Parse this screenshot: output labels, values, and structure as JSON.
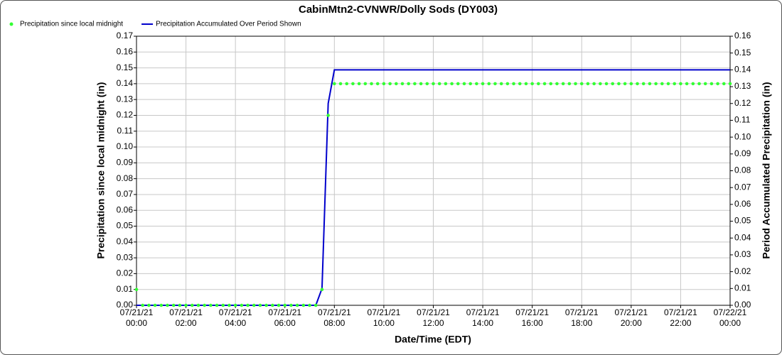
{
  "chart_data": {
    "type": "line",
    "title": "CabinMtn2-CVNWR/Dolly Sods (DY003)",
    "x_label": "Date/Time (EDT)",
    "y_label": "Precipitation since local midnight (in)",
    "y2_label": "Period Accumulated Precipitation (in)",
    "grid": true,
    "legend": "top-left",
    "x": [
      "07/21/21 00:00",
      "07/21/21 00:15",
      "07/21/21 00:30",
      "07/21/21 00:45",
      "07/21/21 01:00",
      "07/21/21 01:15",
      "07/21/21 01:30",
      "07/21/21 01:45",
      "07/21/21 02:00",
      "07/21/21 02:15",
      "07/21/21 02:30",
      "07/21/21 02:45",
      "07/21/21 03:00",
      "07/21/21 03:15",
      "07/21/21 03:30",
      "07/21/21 03:45",
      "07/21/21 04:00",
      "07/21/21 04:15",
      "07/21/21 04:30",
      "07/21/21 04:45",
      "07/21/21 05:00",
      "07/21/21 05:15",
      "07/21/21 05:30",
      "07/21/21 05:45",
      "07/21/21 06:00",
      "07/21/21 06:15",
      "07/21/21 06:30",
      "07/21/21 06:45",
      "07/21/21 07:00",
      "07/21/21 07:15",
      "07/21/21 07:30",
      "07/21/21 07:45",
      "07/21/21 08:00",
      "07/21/21 08:15",
      "07/21/21 08:30",
      "07/21/21 08:45",
      "07/21/21 09:00",
      "07/21/21 09:15",
      "07/21/21 09:30",
      "07/21/21 09:45",
      "07/21/21 10:00",
      "07/21/21 10:15",
      "07/21/21 10:30",
      "07/21/21 10:45",
      "07/21/21 11:00",
      "07/21/21 11:15",
      "07/21/21 11:30",
      "07/21/21 11:45",
      "07/21/21 12:00",
      "07/21/21 12:15",
      "07/21/21 12:30",
      "07/21/21 12:45",
      "07/21/21 13:00",
      "07/21/21 13:15",
      "07/21/21 13:30",
      "07/21/21 13:45",
      "07/21/21 14:00",
      "07/21/21 14:15",
      "07/21/21 14:30",
      "07/21/21 14:45",
      "07/21/21 15:00",
      "07/21/21 15:15",
      "07/21/21 15:30",
      "07/21/21 15:45",
      "07/21/21 16:00",
      "07/21/21 16:15",
      "07/21/21 16:30",
      "07/21/21 16:45",
      "07/21/21 17:00",
      "07/21/21 17:15",
      "07/21/21 17:30",
      "07/21/21 17:45",
      "07/21/21 18:00",
      "07/21/21 18:15",
      "07/21/21 18:30",
      "07/21/21 18:45",
      "07/21/21 19:00",
      "07/21/21 19:15",
      "07/21/21 19:30",
      "07/21/21 19:45",
      "07/21/21 20:00",
      "07/21/21 20:15",
      "07/21/21 20:30",
      "07/21/21 20:45",
      "07/21/21 21:00",
      "07/21/21 21:15",
      "07/21/21 21:30",
      "07/21/21 21:45",
      "07/21/21 22:00",
      "07/21/21 22:15",
      "07/21/21 22:30",
      "07/21/21 22:45",
      "07/21/21 23:00",
      "07/21/21 23:15",
      "07/21/21 23:30",
      "07/21/21 23:45",
      "07/22/21 00:00"
    ],
    "xlim": [
      "07/21/21 00:00",
      "07/22/21 00:00"
    ],
    "xticks": [
      "07/21/21 00:00",
      "07/21/21 02:00",
      "07/21/21 04:00",
      "07/21/21 06:00",
      "07/21/21 08:00",
      "07/21/21 10:00",
      "07/21/21 12:00",
      "07/21/21 14:00",
      "07/21/21 16:00",
      "07/21/21 18:00",
      "07/21/21 20:00",
      "07/21/21 22:00",
      "07/22/21 00:00"
    ],
    "ylim": [
      0,
      0.17
    ],
    "yticks": [
      {
        "value": 0,
        "label": "0.00"
      },
      {
        "value": 0.01,
        "label": "0.01"
      },
      {
        "value": 0.02,
        "label": "0.02"
      },
      {
        "value": 0.03,
        "label": "0.03"
      },
      {
        "value": 0.04,
        "label": "0.04"
      },
      {
        "value": 0.05,
        "label": "0.05"
      },
      {
        "value": 0.06,
        "label": "0.06"
      },
      {
        "value": 0.07,
        "label": "0.07"
      },
      {
        "value": 0.08,
        "label": "0.08"
      },
      {
        "value": 0.09,
        "label": "0.09"
      },
      {
        "value": 0.1,
        "label": "0.10"
      },
      {
        "value": 0.11,
        "label": "0.11"
      },
      {
        "value": 0.12,
        "label": "0.12"
      },
      {
        "value": 0.13,
        "label": "0.13"
      },
      {
        "value": 0.14,
        "label": "0.14"
      },
      {
        "value": 0.15,
        "label": "0.15"
      },
      {
        "value": 0.16,
        "label": "0.16"
      },
      {
        "value": 0.17,
        "label": "0.17"
      }
    ],
    "y2lim": [
      0,
      0.16
    ],
    "y2ticks": [
      {
        "value": 0,
        "label": "0.00"
      },
      {
        "value": 0.01,
        "label": "0.01"
      },
      {
        "value": 0.02,
        "label": "0.02"
      },
      {
        "value": 0.03,
        "label": "0.03"
      },
      {
        "value": 0.04,
        "label": "0.04"
      },
      {
        "value": 0.05,
        "label": "0.05"
      },
      {
        "value": 0.06,
        "label": "0.06"
      },
      {
        "value": 0.07,
        "label": "0.07"
      },
      {
        "value": 0.08,
        "label": "0.08"
      },
      {
        "value": 0.09,
        "label": "0.09"
      },
      {
        "value": 0.1,
        "label": "0.10"
      },
      {
        "value": 0.11,
        "label": "0.11"
      },
      {
        "value": 0.12,
        "label": "0.12"
      },
      {
        "value": 0.13,
        "label": "0.13"
      },
      {
        "value": 0.14,
        "label": "0.14"
      },
      {
        "value": 0.15,
        "label": "0.15"
      },
      {
        "value": 0.16,
        "label": "0.16"
      }
    ],
    "series": [
      {
        "name": "Precipitation since local midnight",
        "type": "scatter",
        "color": "#33ff33",
        "values": [
          0.01,
          0,
          0,
          0,
          0,
          0,
          0,
          0,
          0,
          0,
          0,
          0,
          0,
          0,
          0,
          0,
          0,
          0,
          0,
          0,
          0,
          0,
          0,
          0,
          0,
          0,
          0,
          0,
          0,
          0,
          0.01,
          0.12,
          0.14,
          0.14,
          0.14,
          0.14,
          0.14,
          0.14,
          0.14,
          0.14,
          0.14,
          0.14,
          0.14,
          0.14,
          0.14,
          0.14,
          0.14,
          0.14,
          0.14,
          0.14,
          0.14,
          0.14,
          0.14,
          0.14,
          0.14,
          0.14,
          0.14,
          0.14,
          0.14,
          0.14,
          0.14,
          0.14,
          0.14,
          0.14,
          0.14,
          0.14,
          0.14,
          0.14,
          0.14,
          0.14,
          0.14,
          0.14,
          0.14,
          0.14,
          0.14,
          0.14,
          0.14,
          0.14,
          0.14,
          0.14,
          0.14,
          0.14,
          0.14,
          0.14,
          0.14,
          0.14,
          0.14,
          0.14,
          0.14,
          0.14,
          0.14,
          0.14,
          0.14,
          0.14,
          0.14,
          0.14,
          0.14
        ]
      },
      {
        "name": "Precipitation Accumulated Over Period Shown",
        "type": "line",
        "color": "#0000cc",
        "axis": "y2",
        "values": [
          0,
          0,
          0,
          0,
          0,
          0,
          0,
          0,
          0,
          0,
          0,
          0,
          0,
          0,
          0,
          0,
          0,
          0,
          0,
          0,
          0,
          0,
          0,
          0,
          0,
          0,
          0,
          0,
          0,
          0,
          0.01,
          0.12,
          0.14,
          0.14,
          0.14,
          0.14,
          0.14,
          0.14,
          0.14,
          0.14,
          0.14,
          0.14,
          0.14,
          0.14,
          0.14,
          0.14,
          0.14,
          0.14,
          0.14,
          0.14,
          0.14,
          0.14,
          0.14,
          0.14,
          0.14,
          0.14,
          0.14,
          0.14,
          0.14,
          0.14,
          0.14,
          0.14,
          0.14,
          0.14,
          0.14,
          0.14,
          0.14,
          0.14,
          0.14,
          0.14,
          0.14,
          0.14,
          0.14,
          0.14,
          0.14,
          0.14,
          0.14,
          0.14,
          0.14,
          0.14,
          0.14,
          0.14,
          0.14,
          0.14,
          0.14,
          0.14,
          0.14,
          0.14,
          0.14,
          0.14,
          0.14,
          0.14,
          0.14,
          0.14,
          0.14,
          0.14,
          0.14
        ]
      }
    ]
  }
}
